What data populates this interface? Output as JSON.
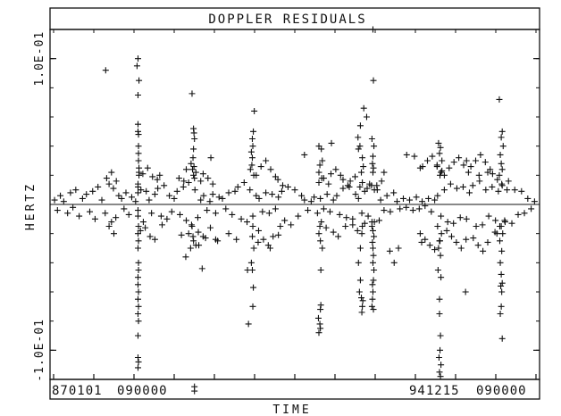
{
  "chart_data": {
    "type": "scatter",
    "title": "DOPPLER RESIDUALS",
    "xlabel": "TIME",
    "ylabel": "HERTZ",
    "marker": "+",
    "marker_color": "#111111",
    "ylim": [
      -0.12,
      0.12
    ],
    "y_ticks": [
      {
        "value": 0.1,
        "label": "1.0E-01"
      },
      {
        "value": -0.1,
        "label": "-1.0E-01"
      }
    ],
    "x_tick_labels": {
      "start_date": "870101",
      "start_time": "090000",
      "end_date": "941215",
      "end_time": "090000"
    },
    "zero_line": true,
    "grid": false,
    "series": [
      {
        "x": [
          0.2,
          0.8,
          1.4,
          2.1,
          2.9,
          3.5,
          4.0,
          4.6,
          5.3,
          6.0,
          6.8,
          7.5,
          8.1,
          8.6,
          9.2,
          10.0,
          10.7,
          11.5,
          12.0,
          12.4,
          12.9,
          13.5,
          14.1,
          14.6,
          15.0,
          15.6,
          16.2,
          17.0,
          17.5,
          18.1,
          18.6,
          19.2,
          19.8,
          20.3,
          21.0,
          21.6,
          22.3,
          22.9,
          23.5,
          24.0,
          24.5,
          25.0,
          25.6,
          26.2,
          26.9,
          27.5,
          28.0,
          28.6,
          29.3,
          29.9,
          30.5,
          31.1,
          31.8,
          32.4,
          33.0,
          33.6,
          34.3,
          35.0,
          35.7,
          36.3,
          37.0,
          37.6,
          38.2,
          38.9,
          39.5,
          40.1,
          40.7,
          41.3,
          42.0,
          42.6,
          43.3,
          44.0,
          44.7,
          45.3,
          46.0,
          46.6,
          47.3,
          47.9,
          48.6,
          49.2,
          50.0,
          50.7,
          51.4,
          52.0,
          52.7,
          53.4,
          54.0,
          54.7,
          55.3,
          56.0,
          56.7,
          57.3,
          58.0,
          58.7,
          59.3,
          60.0,
          60.7,
          61.3,
          62.0,
          62.6,
          63.2,
          63.9,
          64.5,
          65.2,
          65.9,
          66.5,
          67.1,
          67.8,
          68.5,
          69.1,
          69.8,
          70.5,
          71.2,
          71.8,
          72.5,
          73.1,
          73.8,
          74.5,
          75.2,
          75.8,
          76.4,
          77.0,
          77.7,
          78.3,
          79.0,
          79.6,
          80.3,
          81.0,
          81.7,
          82.3,
          82.9,
          83.6,
          84.3,
          84.9,
          85.6,
          86.2,
          86.9,
          87.6,
          88.3,
          88.9,
          89.6,
          90.2,
          90.9,
          91.6,
          92.2,
          92.9,
          93.6,
          94.3,
          95.0,
          95.6,
          96.3,
          97.0,
          97.6,
          98.3,
          99.0,
          99.7
        ],
        "y": [
          0.003,
          -0.004,
          0.006,
          0.002,
          -0.006,
          0.008,
          -0.002,
          0.01,
          -0.008,
          0.004,
          0.007,
          -0.005,
          0.009,
          -0.01,
          0.012,
          0.003,
          -0.006,
          0.014,
          -0.012,
          0.011,
          -0.009,
          0.006,
          0.004,
          -0.003,
          0.008,
          -0.007,
          0.005,
          0.002,
          -0.004,
          0.01,
          -0.012,
          0.009,
          0.003,
          -0.006,
          0.007,
          0.011,
          -0.008,
          0.013,
          -0.01,
          0.006,
          -0.005,
          0.004,
          0.009,
          -0.007,
          0.012,
          -0.011,
          0.015,
          -0.014,
          0.01,
          -0.009,
          0.003,
          0.006,
          -0.004,
          0.002,
          0.007,
          -0.006,
          0.005,
          0.004,
          -0.003,
          0.008,
          -0.007,
          0.009,
          0.012,
          -0.01,
          0.015,
          -0.012,
          0.01,
          -0.008,
          0.006,
          0.004,
          -0.005,
          0.008,
          -0.006,
          0.007,
          -0.003,
          0.005,
          0.009,
          -0.011,
          0.012,
          -0.014,
          0.01,
          -0.008,
          0.006,
          0.003,
          -0.004,
          0.002,
          0.005,
          -0.006,
          0.004,
          -0.003,
          0.007,
          -0.005,
          0.003,
          0.006,
          -0.007,
          0.011,
          -0.009,
          0.012,
          -0.01,
          0.007,
          0.004,
          -0.006,
          0.009,
          -0.008,
          0.013,
          -0.012,
          0.01,
          0.003,
          -0.004,
          0.006,
          -0.005,
          0.008,
          0.002,
          -0.003,
          0.004,
          -0.002,
          0.003,
          -0.004,
          0.005,
          -0.003,
          0.002,
          -0.001,
          0.004,
          -0.005,
          0.003,
          0.006,
          -0.008,
          0.01,
          -0.012,
          0.014,
          -0.013,
          0.011,
          -0.009,
          0.012,
          -0.01,
          0.008,
          0.013,
          -0.015,
          0.016,
          -0.014,
          0.01,
          -0.008,
          0.012,
          -0.011,
          0.009,
          0.014,
          -0.012,
          0.016,
          -0.013,
          0.01,
          -0.007,
          0.009,
          -0.006,
          0.004,
          -0.003,
          0.002
        ]
      },
      {
        "x": [
          11.0,
          11.5,
          12.0,
          12.5,
          13.0,
          17.5,
          18.0,
          18.5,
          19.0,
          19.5,
          20.0,
          20.5,
          21.0,
          21.5,
          22.0,
          22.5,
          26.0,
          26.5,
          27.0,
          27.5,
          28.0,
          28.5,
          29.0,
          29.5,
          30.0,
          30.5,
          31.0,
          31.5,
          32.0,
          32.5,
          33.0,
          42.0,
          42.5,
          43.0,
          43.5,
          44.0,
          44.5,
          45.0,
          45.5,
          46.0,
          46.5,
          47.0,
          47.5,
          55.0,
          55.5,
          56.0,
          56.5,
          57.0,
          57.5,
          58.0,
          58.5,
          59.0,
          59.5,
          60.0,
          60.5,
          61.0,
          61.5,
          62.0,
          62.5,
          63.0,
          63.5,
          64.0,
          64.5,
          65.0,
          65.5,
          66.0,
          66.5,
          67.0,
          67.5,
          68.0,
          68.5,
          76.0,
          76.5,
          77.0,
          77.5,
          78.0,
          78.5,
          79.0,
          79.5,
          80.0,
          80.5,
          81.0,
          81.5,
          82.0,
          82.5,
          83.0,
          83.5,
          84.0,
          84.5,
          85.0,
          85.5,
          86.0,
          86.5,
          87.0,
          87.5,
          88.0,
          88.5,
          89.0,
          89.5,
          90.0,
          90.5,
          91.0,
          91.5,
          92.0,
          92.5,
          93.0,
          93.5,
          94.0
        ],
        "y": [
          0.018,
          -0.015,
          0.022,
          -0.02,
          0.016,
          0.014,
          -0.018,
          0.021,
          -0.016,
          0.025,
          -0.022,
          0.019,
          -0.024,
          0.017,
          0.02,
          -0.014,
          0.018,
          -0.021,
          0.016,
          0.024,
          -0.02,
          0.028,
          -0.025,
          0.022,
          -0.019,
          0.016,
          0.021,
          -0.023,
          0.018,
          -0.016,
          0.014,
          0.02,
          -0.018,
          0.026,
          -0.024,
          0.03,
          -0.028,
          0.024,
          -0.022,
          0.019,
          0.017,
          -0.015,
          0.013,
          0.015,
          -0.012,
          0.018,
          -0.016,
          0.014,
          0.021,
          -0.019,
          0.024,
          -0.022,
          0.02,
          0.017,
          -0.015,
          0.013,
          0.016,
          -0.014,
          0.019,
          -0.018,
          0.012,
          0.015,
          -0.013,
          0.011,
          0.014,
          -0.012,
          0.01,
          0.013,
          -0.011,
          0.016,
          0.022,
          -0.02,
          0.026,
          -0.024,
          0.03,
          -0.028,
          0.033,
          -0.031,
          0.027,
          -0.025,
          0.023,
          0.02,
          -0.018,
          0.025,
          -0.022,
          0.029,
          -0.026,
          0.032,
          -0.03,
          0.027,
          -0.024,
          0.022,
          0.026,
          -0.023,
          0.03,
          -0.028,
          0.034,
          -0.032,
          0.029,
          -0.026,
          0.024,
          0.021,
          -0.019,
          0.017,
          -0.015,
          0.013,
          -0.011,
          0.01
        ]
      },
      {
        "x": [
          17.5,
          17.5,
          17.5,
          17.5,
          17.6,
          17.6,
          17.6,
          17.6,
          17.7,
          17.7,
          17.7,
          17.6,
          17.5,
          17.6,
          17.5,
          17.6,
          17.6,
          17.5,
          17.5,
          17.6,
          17.5,
          17.6,
          17.5,
          17.6,
          17.5,
          17.5,
          17.6,
          17.5,
          17.5,
          17.5,
          17.5
        ],
        "y": [
          0.1,
          0.075,
          0.055,
          0.05,
          0.048,
          0.04,
          0.035,
          0.03,
          0.025,
          0.022,
          0.02,
          -0.015,
          -0.02,
          -0.025,
          -0.03,
          -0.04,
          -0.045,
          -0.05,
          -0.055,
          -0.06,
          -0.065,
          -0.07,
          -0.075,
          -0.08,
          -0.09,
          -0.105,
          -0.108,
          -0.112,
          0.008,
          -0.008,
          0.012
        ]
      },
      {
        "x": [
          28.7,
          29.0,
          29.1,
          29.2,
          29.0,
          28.9,
          29.1,
          28.8,
          29.0,
          29.2,
          28.7,
          28.9,
          28.4,
          27.4,
          30.1,
          31.0,
          33.6,
          34.0,
          29.2,
          29.2
        ],
        "y": [
          0.076,
          0.052,
          0.049,
          0.045,
          0.038,
          0.032,
          0.026,
          0.024,
          0.02,
          0.018,
          -0.015,
          -0.022,
          -0.03,
          -0.036,
          -0.028,
          -0.022,
          -0.024,
          -0.025,
          -0.125,
          -0.128
        ]
      },
      {
        "x": [
          41.6,
          41.4,
          41.2,
          41.3,
          41.0,
          41.2,
          41.1,
          40.8,
          41.5,
          41.3,
          41.2,
          41.5,
          41.0,
          41.2,
          40.4,
          41.3,
          41.4
        ],
        "y": [
          0.064,
          0.05,
          0.045,
          0.04,
          0.036,
          0.032,
          0.027,
          0.024,
          0.02,
          -0.015,
          -0.022,
          -0.03,
          -0.04,
          -0.045,
          -0.082,
          -0.07,
          -0.057
        ]
      },
      {
        "x": [
          55.5,
          55.7,
          55.2,
          55.0,
          55.6,
          55.2,
          55.0,
          55.3,
          55.7,
          55.4,
          55.4,
          55.3,
          55.3,
          55.0,
          55.2,
          54.9
        ],
        "y": [
          0.038,
          0.03,
          0.027,
          0.022,
          0.018,
          -0.015,
          -0.02,
          -0.025,
          -0.03,
          -0.045,
          -0.069,
          -0.072,
          -0.085,
          -0.088,
          -0.082,
          -0.078
        ]
      },
      {
        "x": [
          64.3,
          63.6,
          63.1,
          63.5,
          64.0,
          64.2,
          63.8,
          64.0,
          63.9,
          63.6,
          63.2,
          63.6,
          63.4,
          63.8,
          64.1,
          64.0,
          63.9
        ],
        "y": [
          0.066,
          0.054,
          0.046,
          0.04,
          0.032,
          0.026,
          0.022,
          -0.015,
          -0.02,
          -0.03,
          -0.04,
          -0.052,
          -0.06,
          -0.064,
          -0.066,
          -0.07,
          -0.074
        ]
      },
      {
        "x": [
          66.2,
          66.3,
          66.0,
          66.4,
          66.2,
          66.1,
          66.3,
          66.2,
          66.0,
          66.2,
          66.4,
          66.1,
          66.2,
          66.3,
          66.2,
          66.4,
          66.3,
          66.1,
          66.2,
          66.1,
          66.0,
          66.3
        ],
        "y": [
          0.12,
          0.085,
          0.045,
          0.04,
          0.033,
          0.028,
          0.025,
          0.022,
          -0.015,
          -0.018,
          -0.022,
          -0.026,
          -0.03,
          -0.035,
          -0.04,
          -0.045,
          -0.052,
          -0.055,
          -0.06,
          -0.065,
          -0.07,
          -0.072
        ]
      },
      {
        "x": [
          79.8,
          80.2,
          80.0,
          80.5,
          79.5,
          80.3,
          80.1,
          79.6,
          80.4,
          80.1,
          79.8,
          80.2,
          79.7,
          80.3,
          80.0,
          80.0,
          80.2,
          80.1,
          79.9,
          80.3,
          80.0,
          80.2
        ],
        "y": [
          0.042,
          0.039,
          0.035,
          0.03,
          0.026,
          0.022,
          0.02,
          -0.015,
          -0.02,
          -0.025,
          -0.03,
          -0.035,
          -0.045,
          -0.05,
          -0.065,
          -0.075,
          -0.09,
          -0.1,
          -0.105,
          -0.11,
          -0.115,
          -0.118
        ]
      },
      {
        "x": [
          92.4,
          93.0,
          92.8,
          93.2,
          92.6,
          92.8,
          93.0,
          92.4,
          92.8,
          93.1,
          92.5,
          92.9,
          92.6,
          92.8,
          93.0,
          92.7,
          92.9,
          92.8,
          92.6,
          93.0
        ],
        "y": [
          0.072,
          0.05,
          0.046,
          0.04,
          0.034,
          0.028,
          0.024,
          0.02,
          -0.015,
          -0.02,
          -0.025,
          -0.032,
          -0.04,
          -0.048,
          -0.054,
          -0.056,
          -0.06,
          -0.07,
          -0.075,
          -0.092
        ]
      },
      {
        "x": [
          10.8,
          17.3,
          17.7,
          30.8,
          29.5,
          32.6,
          36.3,
          37.9,
          40.2,
          42.4,
          44.9,
          46.6,
          52.0,
          55.0,
          57.6,
          63.2,
          64.9,
          69.7,
          70.6,
          71.5,
          73.2,
          74.8,
          76.0,
          76.3,
          85.6,
          85.4,
          88.2,
          90.0,
          91.9
        ],
        "y": [
          0.092,
          0.095,
          0.085,
          -0.044,
          -0.028,
          0.032,
          -0.02,
          -0.024,
          -0.045,
          -0.026,
          -0.03,
          -0.021,
          0.034,
          0.04,
          0.042,
          0.038,
          0.06,
          -0.032,
          -0.04,
          -0.03,
          0.034,
          0.033,
          0.025,
          -0.026,
          0.03,
          -0.06,
          0.02,
          0.022,
          -0.02
        ]
      }
    ]
  }
}
